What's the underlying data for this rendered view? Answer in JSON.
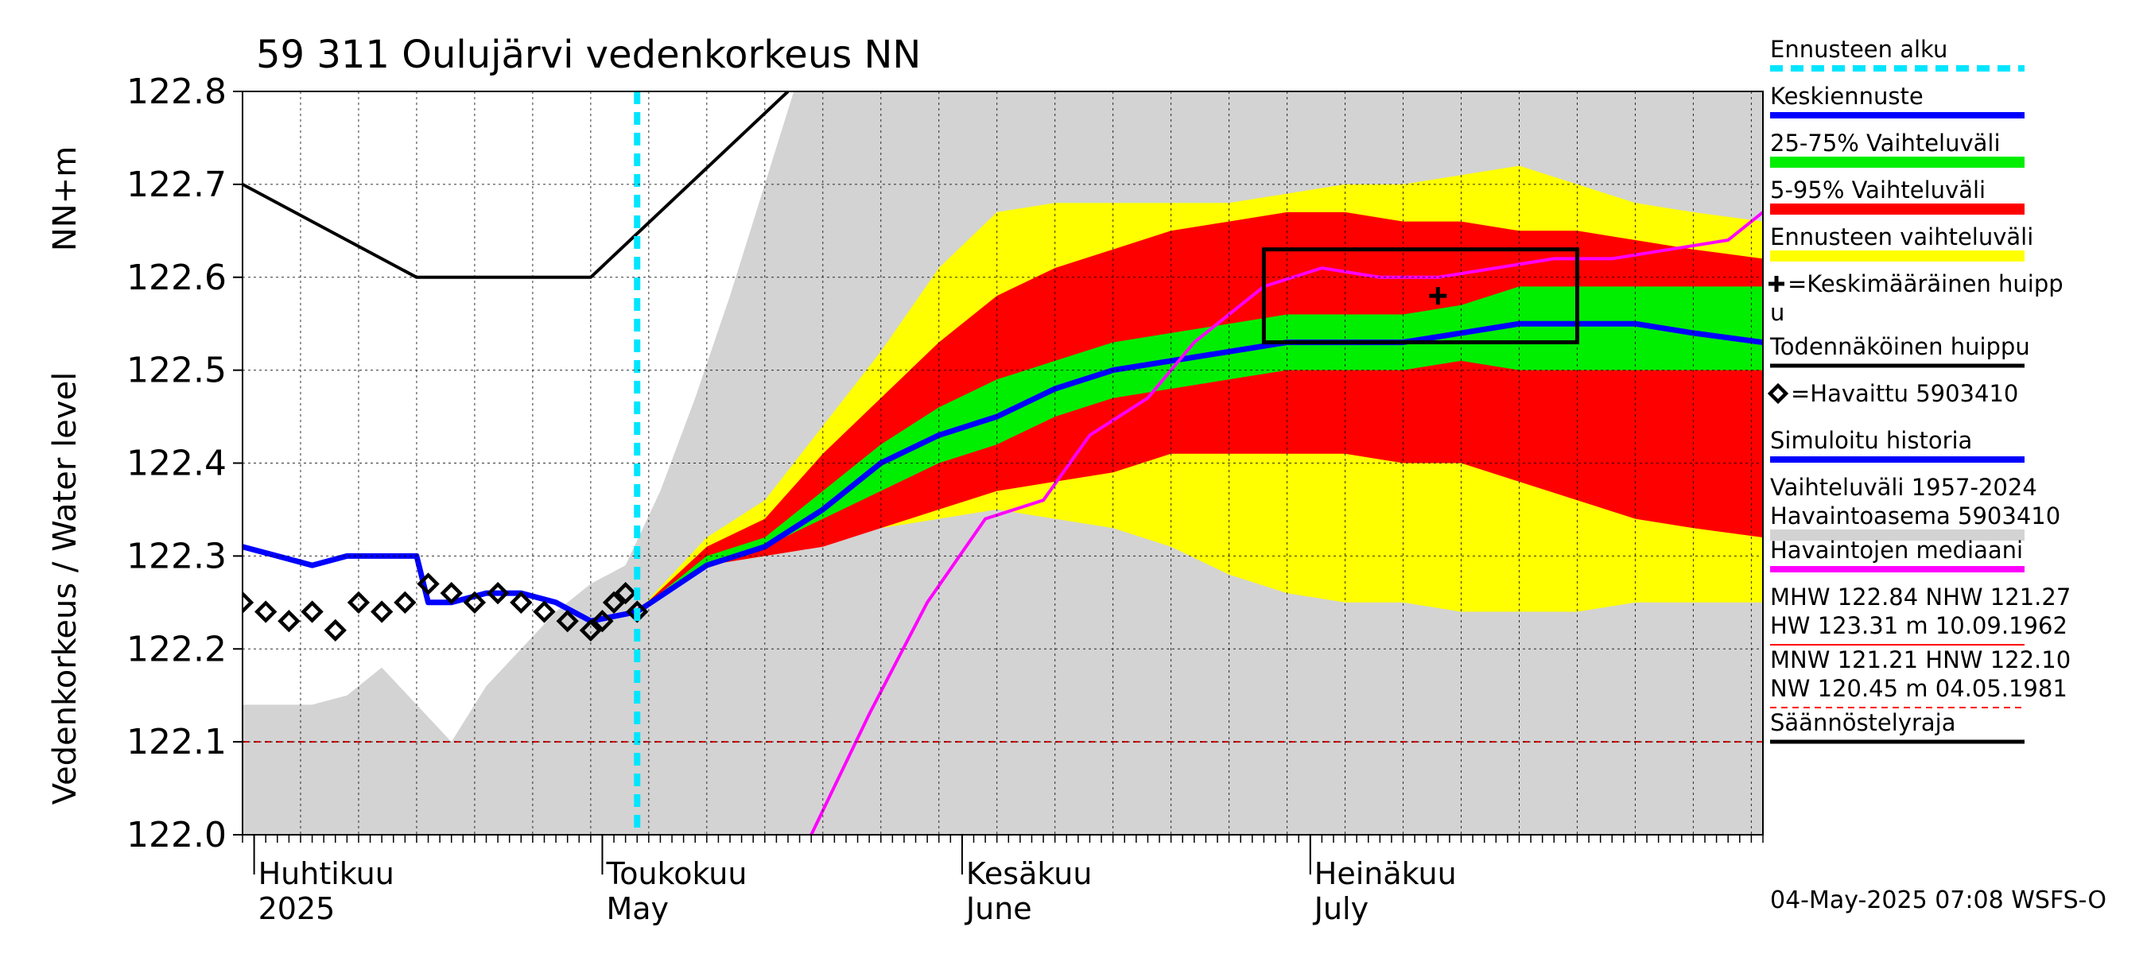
{
  "chart_data": {
    "type": "area",
    "title": "59 311 Oulujärvi vedenkorkeus NN",
    "ylabel": "Vedenkorkeus / Water level",
    "yunit": "NN+m",
    "ylim": [
      122.0,
      122.8
    ],
    "yticks": [
      "122.8",
      "122.7",
      "122.6",
      "122.5",
      "122.4",
      "122.3",
      "122.2",
      "122.1",
      "122.0"
    ],
    "xlim": [
      "2025-03-31",
      "2025-08-09"
    ],
    "grid": true,
    "legend_position": "right",
    "month_labels": [
      {
        "date": "2025-04-01",
        "line1": "Huhtikuu",
        "line2": "2025"
      },
      {
        "date": "2025-05-01",
        "line1": "Toukokuu",
        "line2": "May"
      },
      {
        "date": "2025-06-01",
        "line1": "Kesäkuu",
        "line2": "June"
      },
      {
        "date": "2025-07-01",
        "line1": "Heinäkuu",
        "line2": "July"
      }
    ],
    "forecast_start": "2025-05-04",
    "regulation_limit": 122.1,
    "history_range_area": {
      "x": [
        "2025-03-31",
        "2025-04-03",
        "2025-04-06",
        "2025-04-09",
        "2025-04-12",
        "2025-04-15",
        "2025-04-18",
        "2025-04-21",
        "2025-04-24",
        "2025-04-27",
        "2025-04-30",
        "2025-05-03",
        "2025-05-06",
        "2025-05-09",
        "2025-05-12",
        "2025-05-15",
        "2025-05-18",
        "2025-05-21",
        "2025-05-24",
        "2025-05-27",
        "2025-05-30",
        "2025-06-02",
        "2025-06-05",
        "2025-06-09",
        "2025-06-14",
        "2025-06-21",
        "2025-07-01",
        "2025-07-10",
        "2025-07-20",
        "2025-07-30",
        "2025-08-09"
      ],
      "low": [
        122.14,
        122.14,
        122.14,
        122.15,
        122.18,
        122.14,
        122.1,
        122.16,
        122.2,
        122.22,
        122.25,
        122.27,
        122.3,
        122.31,
        122.32,
        122.33,
        122.34,
        122.34,
        122.35,
        122.35,
        122.35,
        122.35,
        122.35,
        122.35,
        122.34,
        122.32,
        122.29,
        122.27,
        122.26,
        122.26,
        122.26
      ],
      "high": [
        122.14,
        122.14,
        122.14,
        122.15,
        122.18,
        122.14,
        122.1,
        122.16,
        122.2,
        122.24,
        122.27,
        122.29,
        122.37,
        122.47,
        122.58,
        122.7,
        122.82,
        122.95,
        123.1,
        123.25,
        123.4,
        123.55,
        123.7,
        123.85,
        124.0,
        124.2,
        124.4,
        124.6,
        124.8,
        125.0,
        125.2
      ]
    },
    "forecast_bands": {
      "x": [
        "2025-05-04",
        "2025-05-10",
        "2025-05-15",
        "2025-05-20",
        "2025-05-25",
        "2025-05-30",
        "2025-06-04",
        "2025-06-09",
        "2025-06-14",
        "2025-06-19",
        "2025-06-24",
        "2025-06-29",
        "2025-07-04",
        "2025-07-09",
        "2025-07-14",
        "2025-07-19",
        "2025-07-24",
        "2025-07-29",
        "2025-08-03",
        "2025-08-09"
      ],
      "p5": [
        122.24,
        122.29,
        122.3,
        122.32,
        122.33,
        122.34,
        122.35,
        122.34,
        122.33,
        122.31,
        122.28,
        122.26,
        122.25,
        122.25,
        122.24,
        122.24,
        122.24,
        122.25,
        122.25,
        122.25
      ],
      "p5_inner": [
        122.24,
        122.29,
        122.3,
        122.31,
        122.33,
        122.35,
        122.37,
        122.38,
        122.39,
        122.41,
        122.41,
        122.41,
        122.41,
        122.4,
        122.4,
        122.38,
        122.36,
        122.34,
        122.33,
        122.32
      ],
      "p25": [
        122.24,
        122.29,
        122.31,
        122.34,
        122.37,
        122.4,
        122.42,
        122.45,
        122.47,
        122.48,
        122.49,
        122.5,
        122.5,
        122.5,
        122.51,
        122.5,
        122.5,
        122.5,
        122.5,
        122.5
      ],
      "p75": [
        122.24,
        122.3,
        122.32,
        122.37,
        122.42,
        122.46,
        122.49,
        122.51,
        122.53,
        122.54,
        122.55,
        122.56,
        122.56,
        122.56,
        122.57,
        122.59,
        122.59,
        122.59,
        122.59,
        122.59
      ],
      "p95_inner": [
        122.24,
        122.31,
        122.34,
        122.41,
        122.47,
        122.53,
        122.58,
        122.61,
        122.63,
        122.65,
        122.66,
        122.67,
        122.67,
        122.66,
        122.66,
        122.65,
        122.65,
        122.64,
        122.63,
        122.62
      ],
      "p95": [
        122.24,
        122.32,
        122.36,
        122.44,
        122.52,
        122.61,
        122.67,
        122.68,
        122.68,
        122.68,
        122.68,
        122.69,
        122.7,
        122.7,
        122.71,
        122.72,
        122.7,
        122.68,
        122.67,
        122.66
      ]
    },
    "series": [
      {
        "name": "Keskiennuste",
        "color": "#0000ff",
        "x": [
          "2025-05-04",
          "2025-05-10",
          "2025-05-15",
          "2025-05-20",
          "2025-05-25",
          "2025-05-30",
          "2025-06-04",
          "2025-06-09",
          "2025-06-14",
          "2025-06-19",
          "2025-06-24",
          "2025-06-29",
          "2025-07-04",
          "2025-07-09",
          "2025-07-14",
          "2025-07-19",
          "2025-07-24",
          "2025-07-29",
          "2025-08-03",
          "2025-08-09"
        ],
        "y": [
          122.24,
          122.29,
          122.31,
          122.35,
          122.4,
          122.43,
          122.45,
          122.48,
          122.5,
          122.51,
          122.52,
          122.53,
          122.53,
          122.53,
          122.54,
          122.55,
          122.55,
          122.55,
          122.54,
          122.53
        ]
      },
      {
        "name": "Simuloitu historia",
        "color": "#0000ff",
        "x": [
          "2025-03-31",
          "2025-04-03",
          "2025-04-06",
          "2025-04-09",
          "2025-04-12",
          "2025-04-15",
          "2025-04-16",
          "2025-04-18",
          "2025-04-21",
          "2025-04-24",
          "2025-04-27",
          "2025-04-30",
          "2025-05-04"
        ],
        "y": [
          122.31,
          122.3,
          122.29,
          122.3,
          122.3,
          122.3,
          122.25,
          122.25,
          122.26,
          122.26,
          122.25,
          122.23,
          122.24
        ]
      },
      {
        "name": "Havaintojen mediaani",
        "color": "#ff00ff",
        "x": [
          "2025-05-19",
          "2025-05-24",
          "2025-05-29",
          "2025-06-03",
          "2025-06-08",
          "2025-06-12",
          "2025-06-17",
          "2025-06-21",
          "2025-06-27",
          "2025-07-02",
          "2025-07-07",
          "2025-07-12",
          "2025-07-17",
          "2025-07-22",
          "2025-07-27",
          "2025-08-01",
          "2025-08-06",
          "2025-08-09"
        ],
        "y": [
          122.0,
          122.13,
          122.25,
          122.34,
          122.36,
          122.43,
          122.47,
          122.53,
          122.59,
          122.61,
          122.6,
          122.6,
          122.61,
          122.62,
          122.62,
          122.63,
          122.64,
          122.67
        ]
      },
      {
        "name": "Todennäköinen huippu",
        "color": "#000000",
        "x": [
          "2025-03-31",
          "2025-04-15",
          "2025-04-30",
          "2025-05-17"
        ],
        "y": [
          122.7,
          122.6,
          122.6,
          122.8
        ]
      },
      {
        "name": "Havaittu 5903410",
        "color": "#000000",
        "x": [
          "2025-03-31",
          "2025-04-02",
          "2025-04-04",
          "2025-04-06",
          "2025-04-08",
          "2025-04-10",
          "2025-04-12",
          "2025-04-14",
          "2025-04-16",
          "2025-04-18",
          "2025-04-20",
          "2025-04-22",
          "2025-04-24",
          "2025-04-26",
          "2025-04-28",
          "2025-04-30",
          "2025-05-01",
          "2025-05-02",
          "2025-05-03",
          "2025-05-04"
        ],
        "y": [
          122.25,
          122.24,
          122.23,
          122.24,
          122.22,
          122.25,
          122.24,
          122.25,
          122.27,
          122.26,
          122.25,
          122.26,
          122.25,
          122.24,
          122.23,
          122.22,
          122.23,
          122.25,
          122.26,
          122.24
        ]
      }
    ],
    "peak_box": {
      "x": [
        "2025-06-27",
        "2025-07-24"
      ],
      "y": [
        122.53,
        122.63
      ]
    },
    "mean_peak": {
      "x": "2025-07-12",
      "y": 122.58
    },
    "legend": [
      {
        "label": "Ennusteen alku",
        "color": "#00e5ff",
        "style": "dashed"
      },
      {
        "label": "Keskiennuste",
        "color": "#0000ff",
        "style": "line"
      },
      {
        "label": "25-75% Vaihteluväli",
        "color": "#00ee00",
        "style": "bar"
      },
      {
        "label": "5-95% Vaihteluväli",
        "color": "#ff0000",
        "style": "bar"
      },
      {
        "label": "Ennusteen vaihteluväli",
        "color": "#ffff00",
        "style": "bar"
      },
      {
        "label": "=Keskimääräinen huipp",
        "label2": "u",
        "color": "#000000",
        "style": "plus"
      },
      {
        "label": "Todennäköinen huippu",
        "color": "#000000",
        "style": "line"
      },
      {
        "label": "=Havaittu 5903410",
        "color": "#000000",
        "style": "diamond"
      },
      {
        "label": "Simuloitu historia",
        "color": "#0000ff",
        "style": "line"
      },
      {
        "label": "Vaihteluväli 1957-2024",
        "label2": " Havaintoasema 5903410",
        "color": "#d3d3d3",
        "style": "bar"
      },
      {
        "label": "Havaintojen mediaani",
        "color": "#ff00ff",
        "style": "line"
      },
      {
        "label": "MHW 122.84 NHW 121.27",
        "label2": "HW 123.31 m 10.09.1962",
        "color": "#ff0000",
        "style": "thin"
      },
      {
        "label": "MNW 121.21 HNW 122.10",
        "label2": "NW 120.45 m 04.05.1981",
        "color": "#ff0000",
        "style": "dashed-thin"
      },
      {
        "label": "Säännöstelyraja",
        "color": "#000000",
        "style": "line"
      }
    ],
    "footer": "04-May-2025 07:08 WSFS-O"
  }
}
